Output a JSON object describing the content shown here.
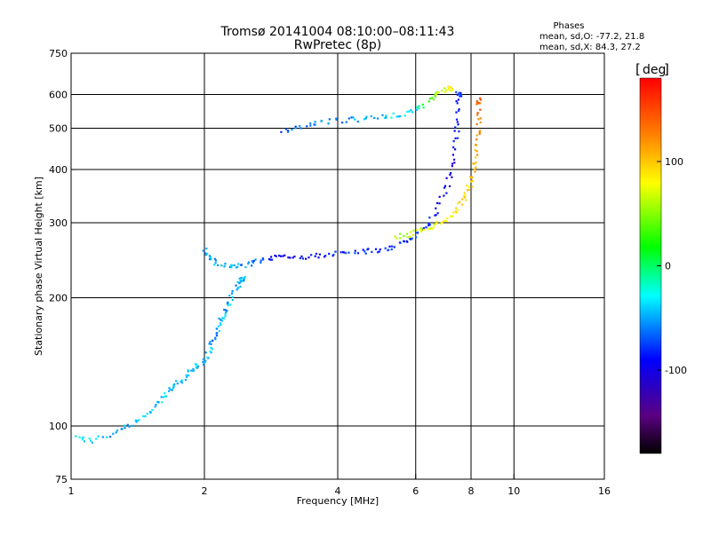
{
  "header": {
    "title_line1": "Tromsø 20141004 08:10:00–08:11:43",
    "title_line2": "RwPretec (8p)"
  },
  "phase_info": {
    "title": "Phases",
    "line_o": "mean, sd,O:  -77.2, 21.8",
    "line_x": "mean, sd,X:  84.3, 27.2"
  },
  "colorbar": {
    "unit": "deg",
    "range": [
      -180,
      180
    ],
    "ticks": [
      {
        "label": "100",
        "value": 100
      },
      {
        "label": "0",
        "value": 0
      },
      {
        "label": "-100",
        "value": -100
      }
    ]
  },
  "chart_data": {
    "type": "scatter",
    "title": "Tromsø 20141004 08:10:00–08:11:43",
    "subtitle": "RwPretec (8p)",
    "xlabel": "Frequency [MHz]",
    "ylabel": "Stationary phase Virtual Height [km]",
    "xscale": "log",
    "yscale": "log",
    "xlim": [
      1,
      16
    ],
    "ylim": [
      75,
      750
    ],
    "x_ticks": [
      {
        "value": 1,
        "label": "1"
      },
      {
        "value": 2,
        "label": "2"
      },
      {
        "value": 4,
        "label": "4"
      },
      {
        "value": 6,
        "label": "6"
      },
      {
        "value": 8,
        "label": "8"
      },
      {
        "value": 10,
        "label": "10"
      },
      {
        "value": 16,
        "label": "16"
      }
    ],
    "y_ticks": [
      {
        "value": 75,
        "label": "75"
      },
      {
        "value": 100,
        "label": "100"
      },
      {
        "value": 200,
        "label": "200"
      },
      {
        "value": 300,
        "label": "300"
      },
      {
        "value": 400,
        "label": "400"
      },
      {
        "value": 500,
        "label": "500"
      },
      {
        "value": 600,
        "label": "600"
      },
      {
        "value": 750,
        "label": "750"
      }
    ],
    "x_grid": [
      2,
      4,
      6,
      8,
      10
    ],
    "y_grid": [
      100,
      200,
      300,
      400,
      500,
      600
    ],
    "grid": true,
    "color_scale": "phase in degrees, rainbow from black (-180) through violet, blue, cyan, green, yellow, orange to red (+180)",
    "series": [
      {
        "trace": "o-mode lower E/F1 rising trace",
        "points": [
          [
            1.03,
            95,
            -40
          ],
          [
            1.1,
            92,
            -35
          ],
          [
            1.25,
            96,
            -60
          ],
          [
            1.35,
            100,
            -50
          ],
          [
            1.45,
            104,
            -45
          ],
          [
            1.55,
            112,
            -40
          ],
          [
            1.62,
            118,
            -35
          ],
          [
            1.7,
            124,
            -45
          ],
          [
            1.78,
            128,
            -40
          ],
          [
            1.85,
            133,
            -50
          ],
          [
            1.92,
            138,
            -45
          ],
          [
            2.0,
            142,
            -55
          ],
          [
            2.05,
            150,
            -40
          ],
          [
            2.1,
            160,
            -60
          ],
          [
            2.15,
            170,
            -50
          ],
          [
            2.2,
            180,
            -45
          ],
          [
            2.25,
            190,
            -55
          ],
          [
            2.3,
            200,
            -40
          ],
          [
            2.38,
            212,
            -50
          ],
          [
            2.45,
            222,
            -45
          ]
        ]
      },
      {
        "trace": "o-mode F layer trace",
        "points": [
          [
            2.0,
            260,
            -55
          ],
          [
            2.05,
            248,
            -50
          ],
          [
            2.15,
            240,
            -45
          ],
          [
            2.3,
            235,
            -50
          ],
          [
            2.45,
            238,
            -55
          ],
          [
            2.6,
            243,
            -60
          ],
          [
            2.8,
            248,
            -90
          ],
          [
            3.0,
            250,
            -100
          ],
          [
            3.3,
            250,
            -95
          ],
          [
            3.6,
            252,
            -90
          ],
          [
            4.0,
            255,
            -85
          ],
          [
            4.4,
            257,
            -80
          ],
          [
            4.8,
            258,
            -85
          ],
          [
            5.2,
            262,
            -80
          ],
          [
            5.6,
            268,
            -75
          ],
          [
            6.0,
            278,
            -80
          ],
          [
            6.4,
            295,
            -85
          ],
          [
            6.8,
            330,
            -90
          ],
          [
            7.1,
            370,
            -95
          ],
          [
            7.3,
            420,
            -100
          ],
          [
            7.4,
            480,
            -90
          ],
          [
            7.45,
            540,
            -85
          ],
          [
            7.5,
            600,
            -80
          ]
        ]
      },
      {
        "trace": "x-mode F layer trace",
        "points": [
          [
            5.4,
            278,
            50
          ],
          [
            5.8,
            282,
            60
          ],
          [
            6.2,
            288,
            70
          ],
          [
            6.6,
            295,
            75
          ],
          [
            7.0,
            305,
            80
          ],
          [
            7.4,
            320,
            85
          ],
          [
            7.7,
            340,
            90
          ],
          [
            7.9,
            360,
            95
          ],
          [
            8.05,
            385,
            100
          ],
          [
            8.15,
            420,
            110
          ],
          [
            8.25,
            470,
            120
          ],
          [
            8.3,
            520,
            130
          ],
          [
            8.35,
            580,
            140
          ]
        ]
      },
      {
        "trace": "spread F / upper trace",
        "points": [
          [
            3.0,
            490,
            -70
          ],
          [
            3.3,
            505,
            -65
          ],
          [
            3.6,
            515,
            -60
          ],
          [
            4.0,
            520,
            -55
          ],
          [
            4.5,
            525,
            -50
          ],
          [
            5.0,
            530,
            -45
          ],
          [
            5.5,
            540,
            -40
          ],
          [
            6.0,
            550,
            -35
          ],
          [
            6.4,
            580,
            40
          ],
          [
            6.8,
            610,
            60
          ],
          [
            7.2,
            620,
            80
          ]
        ]
      }
    ]
  }
}
